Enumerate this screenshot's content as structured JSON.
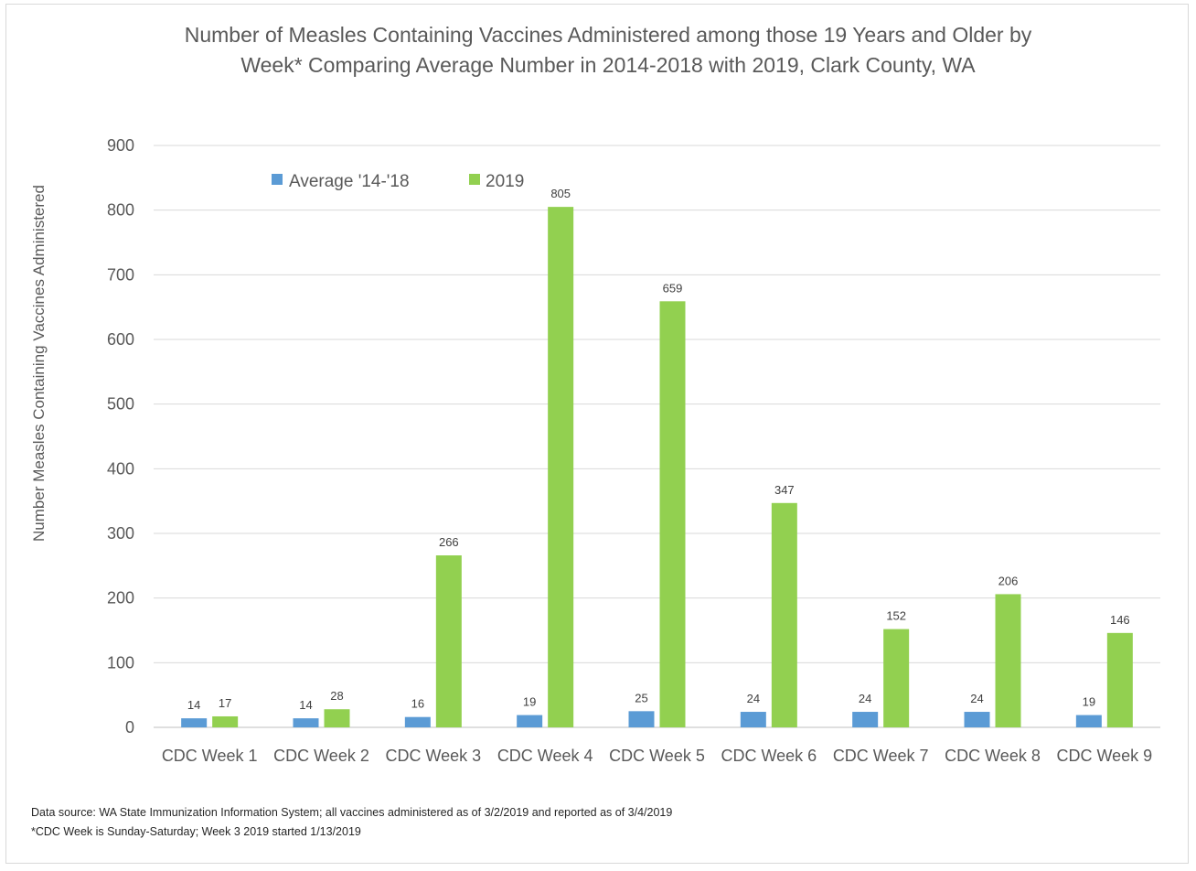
{
  "chart_data": {
    "type": "bar",
    "title_lines": [
      "Number of Measles Containing Vaccines Administered among those 19 Years and Older by",
      "Week* Comparing Average Number in 2014-2018 with 2019, Clark County, WA"
    ],
    "ylabel": "Number Measles Containing Vaccines Administered",
    "xlabel": "",
    "ylim": [
      0,
      900
    ],
    "yticks": [
      0,
      100,
      200,
      300,
      400,
      500,
      600,
      700,
      800,
      900
    ],
    "grid": true,
    "legend_position": "top-left",
    "categories": [
      "CDC Week 1",
      "CDC Week 2",
      "CDC Week 3",
      "CDC Week 4",
      "CDC Week 5",
      "CDC Week 6",
      "CDC Week 7",
      "CDC Week 8",
      "CDC Week 9"
    ],
    "series": [
      {
        "name": "Average '14-'18",
        "color": "#5b9bd5",
        "values": [
          14,
          14,
          16,
          19,
          25,
          24,
          24,
          24,
          19
        ]
      },
      {
        "name": "2019",
        "color": "#92d050",
        "values": [
          17,
          28,
          266,
          805,
          659,
          347,
          152,
          206,
          146
        ]
      }
    ],
    "data_labels": true
  },
  "notes": {
    "source": "Data source: WA State Immunization Information System; all vaccines administered as of 3/2/2019 and reported as of 3/4/2019",
    "footnote": "*CDC Week is Sunday-Saturday; Week 3 2019 started 1/13/2019"
  }
}
